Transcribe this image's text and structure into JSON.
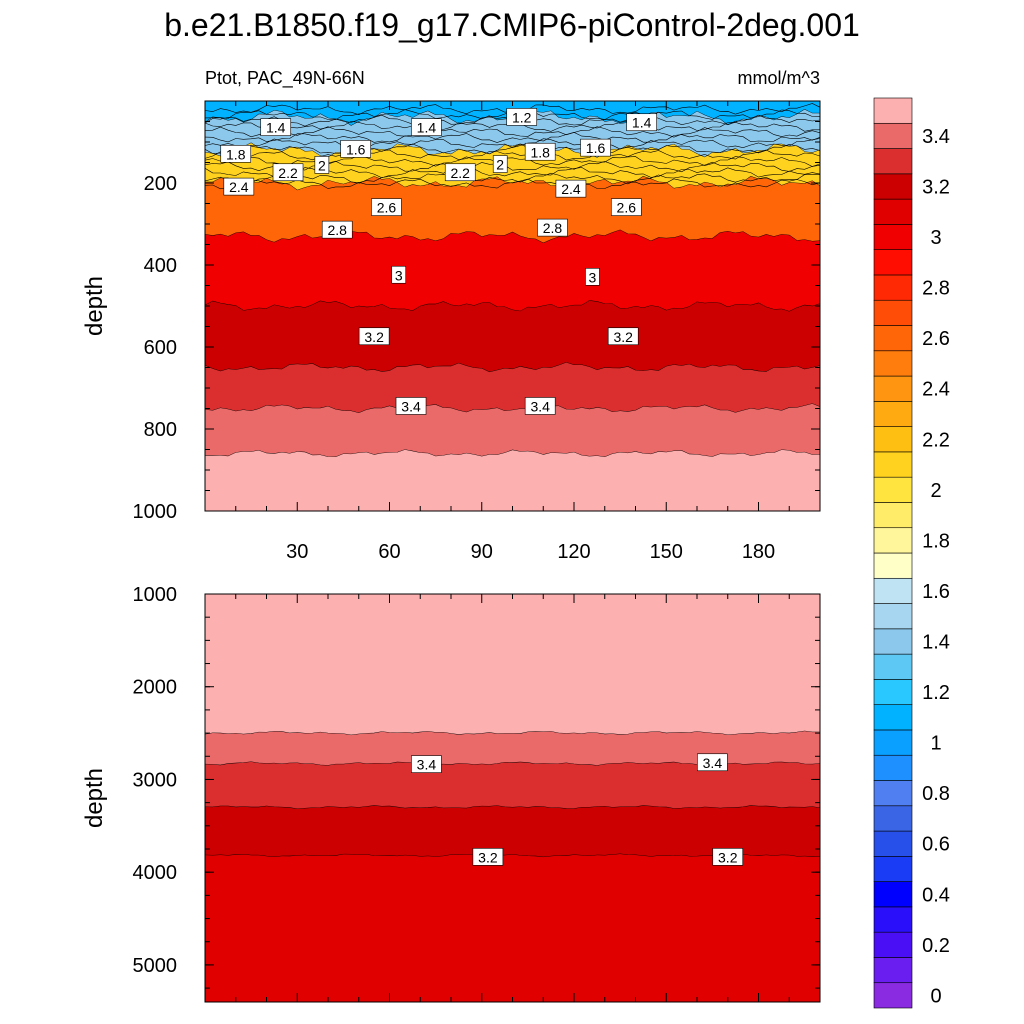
{
  "title": "b.e21.B1850.f19_g17.CMIP6-piControl-2deg.001",
  "variable_label": "Ptot, PAC_49N-66N",
  "units_label": "mmol/m^3",
  "colorbar": {
    "levels": [
      0,
      0.1,
      0.2,
      0.3,
      0.4,
      0.5,
      0.6,
      0.7,
      0.8,
      0.9,
      1.0,
      1.1,
      1.2,
      1.3,
      1.4,
      1.5,
      1.6,
      1.7,
      1.8,
      1.9,
      2.0,
      2.1,
      2.2,
      2.3,
      2.4,
      2.5,
      2.6,
      2.7,
      2.8,
      2.9,
      3.0,
      3.1,
      3.2,
      3.3,
      3.4,
      3.5
    ],
    "labels": [
      "0",
      "0.2",
      "0.4",
      "0.6",
      "0.8",
      "1",
      "1.2",
      "1.4",
      "1.6",
      "1.8",
      "2",
      "2.2",
      "2.4",
      "2.6",
      "2.8",
      "3",
      "3.2",
      "3.4"
    ],
    "colors": [
      "#8a2be2",
      "#6a1ff0",
      "#4b0ff5",
      "#2a0ffa",
      "#0000ff",
      "#1a3cf5",
      "#2750ea",
      "#3a66e6",
      "#4f7ff0",
      "#1e90ff",
      "#0aa0ff",
      "#00b2ff",
      "#29c8ff",
      "#5ec8f5",
      "#8cc8ec",
      "#a6d6f0",
      "#bfe3f3",
      "#ffffc8",
      "#fff59a",
      "#ffed6a",
      "#ffe440",
      "#ffd21f",
      "#ffbf12",
      "#ffaa10",
      "#ff9510",
      "#ff7d0c",
      "#ff6608",
      "#ff4c06",
      "#ff2a04",
      "#ff0d00",
      "#f00000",
      "#e00000",
      "#cc0000",
      "#db2e2e",
      "#ea6a6a",
      "#fdb0b0"
    ]
  },
  "chart_data": [
    {
      "type": "contour",
      "panel": "upper",
      "xlabel": "",
      "ylabel": "depth",
      "xlim": [
        0,
        200
      ],
      "ylim": [
        1000,
        0
      ],
      "xticks": [
        "30",
        "60",
        "90",
        "120",
        "150",
        "180"
      ],
      "yticks": [
        "200",
        "400",
        "600",
        "800",
        "1000"
      ],
      "contour_labels": [
        {
          "text": "1.2",
          "x": 103,
          "y": 40
        },
        {
          "text": "1.4",
          "x": 23,
          "y": 65
        },
        {
          "text": "1.4",
          "x": 72,
          "y": 65
        },
        {
          "text": "1.4",
          "x": 142,
          "y": 53
        },
        {
          "text": "1.6",
          "x": 49,
          "y": 118
        },
        {
          "text": "1.6",
          "x": 127,
          "y": 115
        },
        {
          "text": "1.8",
          "x": 10,
          "y": 130
        },
        {
          "text": "1.8",
          "x": 109,
          "y": 125
        },
        {
          "text": "2",
          "x": 38,
          "y": 157
        },
        {
          "text": "2",
          "x": 96,
          "y": 155
        },
        {
          "text": "2.2",
          "x": 27,
          "y": 175
        },
        {
          "text": "2.2",
          "x": 83,
          "y": 175
        },
        {
          "text": "2.4",
          "x": 11,
          "y": 210
        },
        {
          "text": "2.4",
          "x": 119,
          "y": 215
        },
        {
          "text": "2.6",
          "x": 59,
          "y": 260
        },
        {
          "text": "2.6",
          "x": 137,
          "y": 260
        },
        {
          "text": "2.8",
          "x": 43,
          "y": 315
        },
        {
          "text": "2.8",
          "x": 113,
          "y": 310
        },
        {
          "text": "3",
          "x": 63,
          "y": 425
        },
        {
          "text": "3",
          "x": 126,
          "y": 430
        },
        {
          "text": "3.2",
          "x": 55,
          "y": 575
        },
        {
          "text": "3.2",
          "x": 136,
          "y": 575
        },
        {
          "text": "3.4",
          "x": 67,
          "y": 745
        },
        {
          "text": "3.4",
          "x": 109,
          "y": 745
        }
      ],
      "bands": [
        {
          "top": 0,
          "bottom": 40,
          "value": 1.1
        },
        {
          "top": 40,
          "bottom": 120,
          "value": 1.45
        },
        {
          "top": 120,
          "bottom": 200,
          "value": 2.1
        },
        {
          "top": 200,
          "bottom": 330,
          "value": 2.6
        },
        {
          "top": 330,
          "bottom": 500,
          "value": 3.0
        },
        {
          "top": 500,
          "bottom": 650,
          "value": 3.2
        },
        {
          "top": 650,
          "bottom": 750,
          "value": 3.35
        },
        {
          "top": 750,
          "bottom": 860,
          "value": 3.45
        },
        {
          "top": 860,
          "bottom": 1000,
          "value": 3.55
        }
      ]
    },
    {
      "type": "contour",
      "panel": "lower",
      "xlabel": "",
      "ylabel": "depth",
      "xlim": [
        0,
        200
      ],
      "ylim": [
        5400,
        1000
      ],
      "yticks": [
        "1000",
        "2000",
        "3000",
        "4000",
        "5000"
      ],
      "contour_labels": [
        {
          "text": "3.4",
          "x": 72,
          "y": 2840
        },
        {
          "text": "3.4",
          "x": 165,
          "y": 2820
        },
        {
          "text": "3.2",
          "x": 92,
          "y": 3840
        },
        {
          "text": "3.2",
          "x": 170,
          "y": 3840
        }
      ],
      "bands": [
        {
          "top": 1000,
          "bottom": 2500,
          "value": 3.55
        },
        {
          "top": 2500,
          "bottom": 2830,
          "value": 3.45
        },
        {
          "top": 2830,
          "bottom": 3300,
          "value": 3.35
        },
        {
          "top": 3300,
          "bottom": 3820,
          "value": 3.25
        },
        {
          "top": 3820,
          "bottom": 5400,
          "value": 3.15
        }
      ]
    }
  ]
}
